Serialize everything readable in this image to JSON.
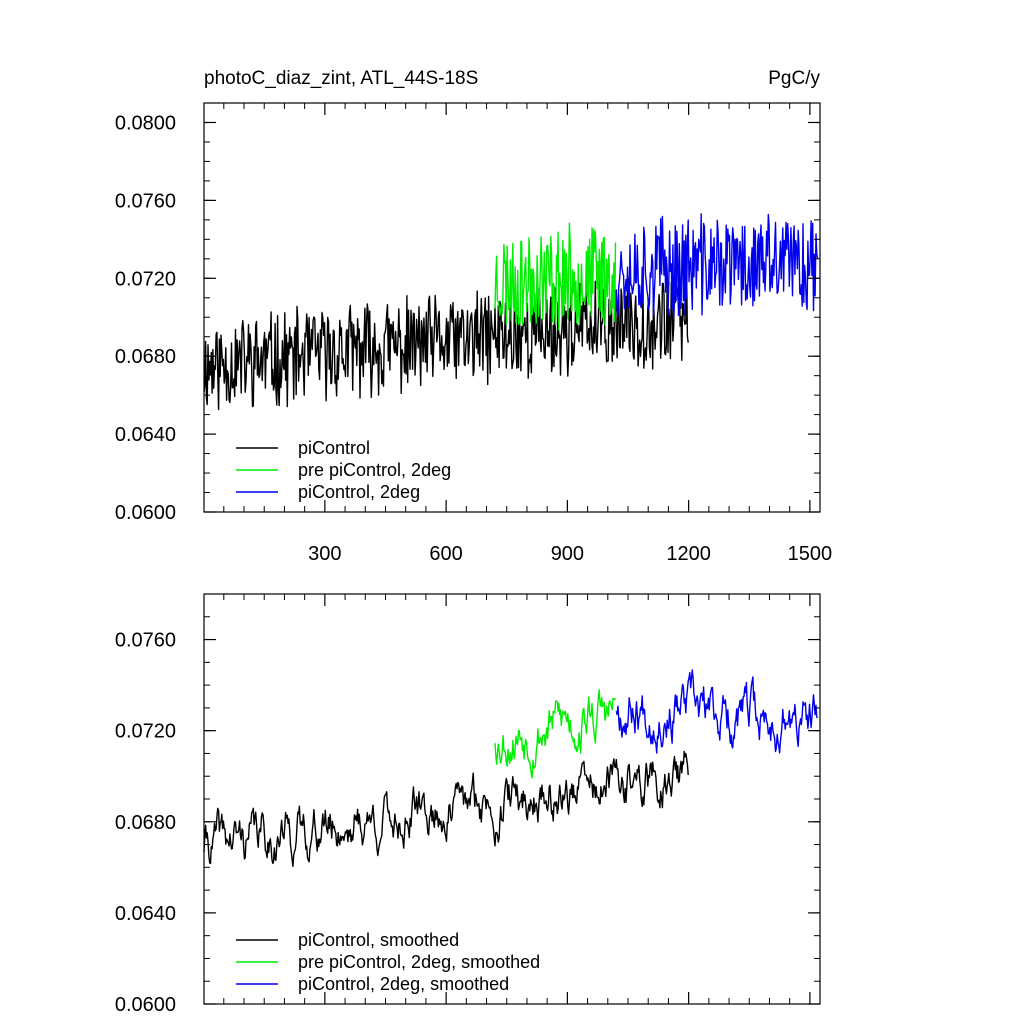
{
  "chart_data": [
    {
      "type": "line",
      "title_left": "photoC_diaz_zint, ATL_44S-18S",
      "title_right": "PgC/y",
      "xlim": [
        1,
        1525
      ],
      "ylim": [
        0.06,
        0.081
      ],
      "yticks": [
        0.06,
        0.064,
        0.068,
        0.072,
        0.076,
        0.08
      ],
      "ytick_labels": [
        "0.0600",
        "0.0640",
        "0.0680",
        "0.0720",
        "0.0760",
        "0.0800"
      ],
      "xticks": [
        300,
        600,
        900,
        1200,
        1500
      ],
      "xtick_labels": [
        "300",
        "600",
        "900",
        "1200",
        "1500"
      ],
      "legend_position": "bottom-left",
      "series": [
        {
          "name": "piControl",
          "color": "#000000",
          "x_start": 1,
          "x_end": 1200,
          "start_value": 0.0675,
          "end_value": 0.07,
          "noise": 0.0022,
          "seed": 11
        },
        {
          "name": "pre piControl, 2deg",
          "color": "#00ee00",
          "x_start": 721,
          "x_end": 1020,
          "start_value": 0.0718,
          "end_value": 0.0722,
          "noise": 0.0024,
          "seed": 23
        },
        {
          "name": "piControl, 2deg",
          "color": "#0000ee",
          "x_start": 1021,
          "x_end": 1520,
          "start_value": 0.0725,
          "end_value": 0.0728,
          "noise": 0.0024,
          "seed": 37
        }
      ]
    },
    {
      "type": "line",
      "xlim": [
        1,
        1525
      ],
      "ylim": [
        0.06,
        0.078
      ],
      "yticks": [
        0.06,
        0.064,
        0.068,
        0.072,
        0.076
      ],
      "ytick_labels": [
        "0.0600",
        "0.0640",
        "0.0680",
        "0.0720",
        "0.0760"
      ],
      "xticks": [
        300,
        600,
        900,
        1200,
        1500
      ],
      "legend_position": "bottom-left",
      "series": [
        {
          "name": "piControl, smoothed",
          "color": "#000000",
          "x_start": 1,
          "x_end": 1200,
          "start_value": 0.067,
          "end_value": 0.07,
          "noise": 0.0011,
          "seed": 41
        },
        {
          "name": "pre piControl, 2deg, smoothed",
          "color": "#00ee00",
          "x_start": 721,
          "x_end": 1020,
          "start_value": 0.0718,
          "end_value": 0.0728,
          "noise": 0.0012,
          "seed": 53
        },
        {
          "name": "piControl, 2deg, smoothed",
          "color": "#0000ee",
          "x_start": 1021,
          "x_end": 1520,
          "start_value": 0.0732,
          "end_value": 0.0722,
          "noise": 0.0012,
          "seed": 67
        }
      ]
    }
  ]
}
